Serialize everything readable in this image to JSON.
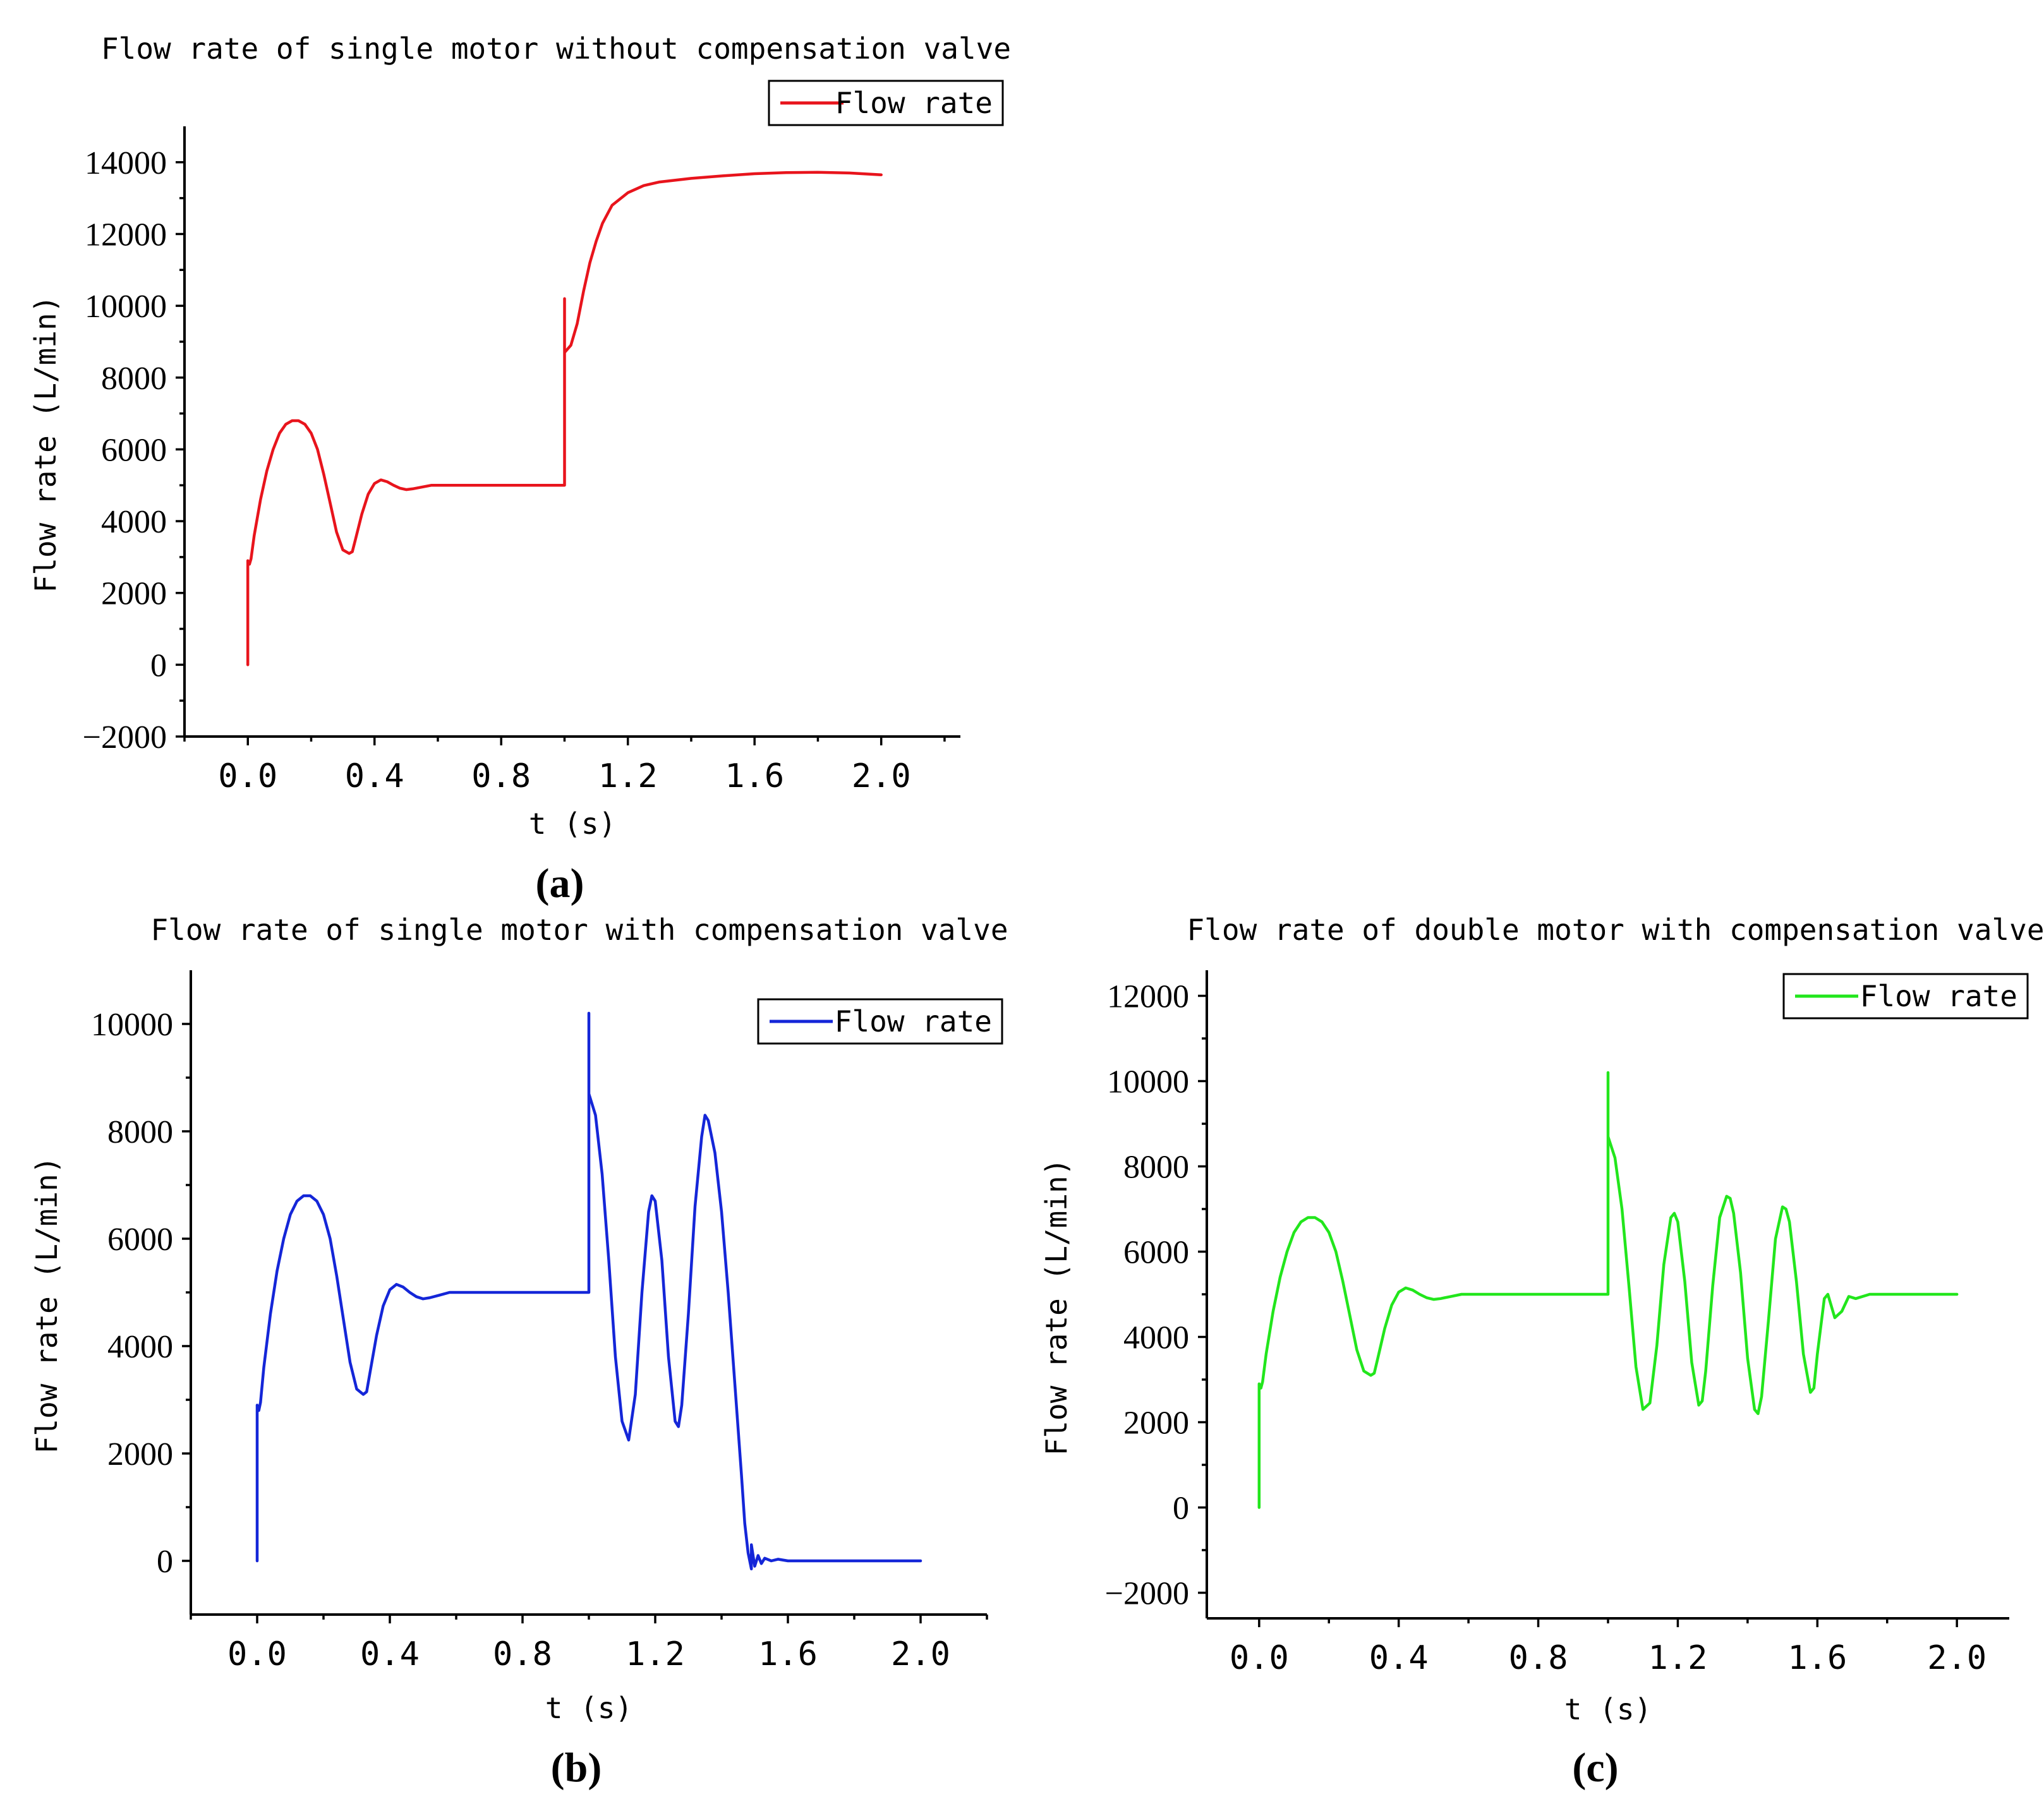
{
  "chart_data": [
    {
      "id": "a",
      "type": "line",
      "panel_label": "(a)",
      "title": "Flow rate of single motor without compensation valve",
      "xlabel": "t (s)",
      "ylabel": "Flow rate (L/min)",
      "xlim": [
        -0.2,
        2.25
      ],
      "ylim": [
        -2000,
        15000
      ],
      "xticks": [
        0.0,
        0.4,
        0.8,
        1.2,
        1.6,
        2.0
      ],
      "xtick_labels": [
        "0.0",
        "0.4",
        "0.8",
        "1.2",
        "1.6",
        "2.0"
      ],
      "yticks": [
        -2000,
        0,
        2000,
        4000,
        6000,
        8000,
        10000,
        12000,
        14000
      ],
      "ytick_labels": [
        "-2000",
        "0",
        "2000",
        "4000",
        "6000",
        "8000",
        "10000",
        "12000",
        "14000"
      ],
      "grid": false,
      "legend_position": "top-right",
      "series": [
        {
          "name": "Flow rate",
          "color": "#e8141c",
          "x": [
            0.0,
            0.0,
            0.005,
            0.01,
            0.02,
            0.04,
            0.06,
            0.08,
            0.1,
            0.12,
            0.14,
            0.16,
            0.18,
            0.2,
            0.22,
            0.24,
            0.26,
            0.28,
            0.3,
            0.32,
            0.33,
            0.34,
            0.36,
            0.38,
            0.4,
            0.42,
            0.44,
            0.46,
            0.48,
            0.5,
            0.52,
            0.55,
            0.58,
            0.6,
            0.65,
            0.7,
            0.8,
            0.9,
            1.0,
            1.0,
            1.0,
            1.0,
            1.02,
            1.04,
            1.06,
            1.08,
            1.1,
            1.12,
            1.15,
            1.2,
            1.25,
            1.3,
            1.4,
            1.5,
            1.6,
            1.7,
            1.8,
            1.9,
            2.0
          ],
          "y": [
            0,
            2900,
            2800,
            2950,
            3600,
            4600,
            5400,
            6000,
            6450,
            6700,
            6800,
            6800,
            6700,
            6450,
            6000,
            5300,
            4500,
            3700,
            3200,
            3100,
            3150,
            3500,
            4200,
            4750,
            5050,
            5150,
            5100,
            5000,
            4920,
            4880,
            4900,
            4950,
            5000,
            5000,
            5000,
            5000,
            5000,
            5000,
            5000,
            10200,
            8800,
            8700,
            8900,
            9500,
            10400,
            11200,
            11800,
            12300,
            12800,
            13150,
            13350,
            13450,
            13550,
            13620,
            13680,
            13710,
            13720,
            13700,
            13650
          ]
        }
      ]
    },
    {
      "id": "b",
      "type": "line",
      "panel_label": "(b)",
      "title": "Flow rate of single motor with compensation valve",
      "xlabel": "t (s)",
      "ylabel": "Flow rate (L/min)",
      "xlim": [
        -0.2,
        2.2
      ],
      "ylim": [
        -1000,
        11000
      ],
      "xticks": [
        0.0,
        0.4,
        0.8,
        1.2,
        1.6,
        2.0
      ],
      "xtick_labels": [
        "0.0",
        "0.4",
        "0.8",
        "1.2",
        "1.6",
        "2.0"
      ],
      "yticks": [
        0,
        2000,
        4000,
        6000,
        8000,
        10000
      ],
      "ytick_labels": [
        "0",
        "2000",
        "4000",
        "6000",
        "8000",
        "10000"
      ],
      "grid": false,
      "legend_position": "top-right",
      "series": [
        {
          "name": "Flow rate",
          "color": "#1426d8",
          "x": [
            0.0,
            0.0,
            0.005,
            0.01,
            0.02,
            0.04,
            0.06,
            0.08,
            0.1,
            0.12,
            0.14,
            0.16,
            0.18,
            0.2,
            0.22,
            0.24,
            0.26,
            0.28,
            0.3,
            0.32,
            0.33,
            0.34,
            0.36,
            0.38,
            0.4,
            0.42,
            0.44,
            0.46,
            0.48,
            0.5,
            0.52,
            0.55,
            0.58,
            0.6,
            0.65,
            0.7,
            0.8,
            0.9,
            1.0,
            1.0,
            1.0,
            1.0,
            1.02,
            1.04,
            1.06,
            1.08,
            1.1,
            1.12,
            1.14,
            1.16,
            1.18,
            1.19,
            1.2,
            1.22,
            1.24,
            1.26,
            1.27,
            1.28,
            1.3,
            1.32,
            1.34,
            1.35,
            1.36,
            1.38,
            1.4,
            1.42,
            1.44,
            1.46,
            1.47,
            1.48,
            1.49,
            1.49,
            1.5,
            1.51,
            1.52,
            1.53,
            1.55,
            1.57,
            1.6,
            1.7,
            1.8,
            1.9,
            2.0
          ],
          "y": [
            0,
            2900,
            2800,
            2950,
            3600,
            4600,
            5400,
            6000,
            6450,
            6700,
            6800,
            6800,
            6700,
            6450,
            6000,
            5300,
            4500,
            3700,
            3200,
            3100,
            3150,
            3500,
            4200,
            4750,
            5050,
            5150,
            5100,
            5000,
            4920,
            4880,
            4900,
            4950,
            5000,
            5000,
            5000,
            5000,
            5000,
            5000,
            5000,
            10200,
            8800,
            8700,
            8300,
            7200,
            5600,
            3800,
            2600,
            2250,
            3100,
            5000,
            6500,
            6800,
            6700,
            5600,
            3800,
            2600,
            2500,
            2900,
            4600,
            6600,
            7900,
            8300,
            8200,
            7600,
            6500,
            5000,
            3300,
            1600,
            700,
            150,
            -150,
            300,
            -100,
            100,
            -50,
            50,
            0,
            30,
            0,
            0,
            0,
            0,
            0
          ]
        }
      ]
    },
    {
      "id": "c",
      "type": "line",
      "panel_label": "(c)",
      "title": "Flow rate of double motor with compensation valve",
      "xlabel": "t (s)",
      "ylabel": "Flow rate (L/min)",
      "xlim": [
        -0.15,
        2.15
      ],
      "ylim": [
        -2600,
        12600
      ],
      "xticks": [
        0.0,
        0.4,
        0.8,
        1.2,
        1.6,
        2.0
      ],
      "xtick_labels": [
        "0.0",
        "0.4",
        "0.8",
        "1.2",
        "1.6",
        "2.0"
      ],
      "yticks": [
        -2000,
        0,
        2000,
        4000,
        6000,
        8000,
        10000,
        12000
      ],
      "ytick_labels": [
        "-2000",
        "0",
        "2000",
        "4000",
        "6000",
        "8000",
        "10000",
        "12000"
      ],
      "grid": false,
      "legend_position": "top-right",
      "series": [
        {
          "name": "Flow rate",
          "color": "#22e61c",
          "x": [
            0.0,
            0.0,
            0.005,
            0.01,
            0.02,
            0.04,
            0.06,
            0.08,
            0.1,
            0.12,
            0.14,
            0.16,
            0.18,
            0.2,
            0.22,
            0.24,
            0.26,
            0.28,
            0.3,
            0.32,
            0.33,
            0.34,
            0.36,
            0.38,
            0.4,
            0.42,
            0.44,
            0.46,
            0.48,
            0.5,
            0.52,
            0.55,
            0.58,
            0.6,
            0.65,
            0.7,
            0.8,
            0.9,
            1.0,
            1.0,
            1.0,
            1.0,
            1.02,
            1.04,
            1.06,
            1.08,
            1.1,
            1.12,
            1.14,
            1.16,
            1.18,
            1.19,
            1.2,
            1.22,
            1.24,
            1.26,
            1.27,
            1.28,
            1.3,
            1.32,
            1.34,
            1.35,
            1.36,
            1.38,
            1.4,
            1.42,
            1.43,
            1.44,
            1.46,
            1.48,
            1.5,
            1.51,
            1.52,
            1.54,
            1.56,
            1.58,
            1.59,
            1.6,
            1.62,
            1.63,
            1.65,
            1.67,
            1.69,
            1.71,
            1.75,
            1.8,
            1.9,
            2.0
          ],
          "y": [
            0,
            2900,
            2800,
            2950,
            3600,
            4600,
            5400,
            6000,
            6450,
            6700,
            6800,
            6800,
            6700,
            6450,
            6000,
            5300,
            4500,
            3700,
            3200,
            3100,
            3150,
            3500,
            4200,
            4750,
            5050,
            5150,
            5100,
            5000,
            4920,
            4880,
            4900,
            4950,
            5000,
            5000,
            5000,
            5000,
            5000,
            5000,
            5000,
            10200,
            8800,
            8700,
            8200,
            7000,
            5200,
            3300,
            2300,
            2450,
            3800,
            5700,
            6800,
            6900,
            6700,
            5300,
            3400,
            2400,
            2500,
            3200,
            5200,
            6800,
            7300,
            7250,
            6900,
            5500,
            3500,
            2300,
            2200,
            2600,
            4400,
            6300,
            7050,
            7000,
            6700,
            5300,
            3600,
            2700,
            2800,
            3600,
            4900,
            5000,
            4450,
            4600,
            4950,
            4900,
            5000,
            5000,
            5000,
            5000
          ]
        }
      ]
    }
  ]
}
